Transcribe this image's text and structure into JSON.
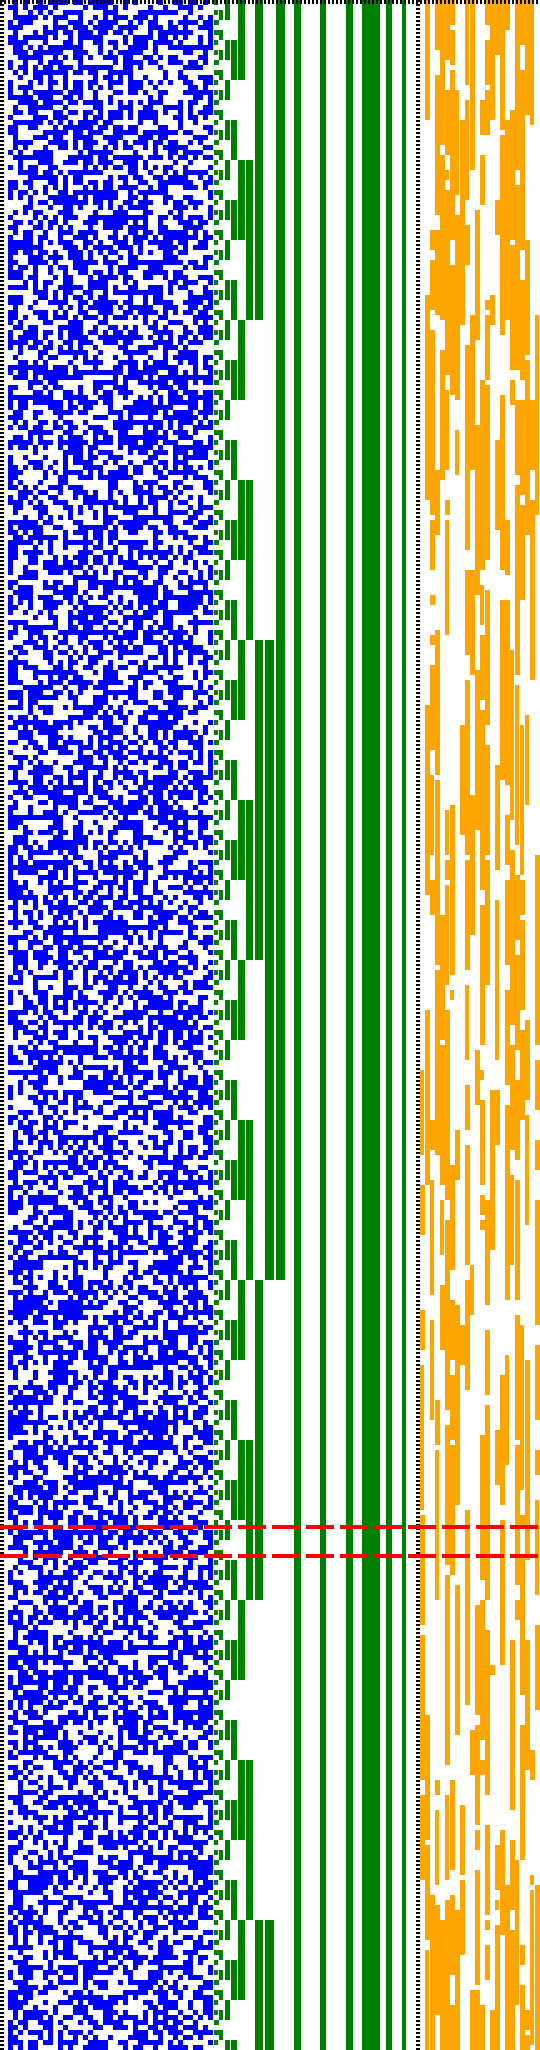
{
  "colors": {
    "background": "#ffffff",
    "blue_region": "#0000ff",
    "green_region": "#008000",
    "orange_region": "#ffa500",
    "dotted_border": "#000000",
    "highlight_lines": "#ff0000"
  },
  "panels": [
    {
      "id": "blue-pixel-grid",
      "color_key": "blue_region",
      "pattern": "random-noise"
    },
    {
      "id": "green-bit-columns",
      "color_key": "green_region",
      "pattern": "binary-counter-stripes"
    },
    {
      "id": "orange-pixel-grid",
      "color_key": "orange_region",
      "pattern": "sparse-vertical-runs"
    }
  ],
  "highlight": {
    "style": "dashed-red",
    "count": 2
  }
}
